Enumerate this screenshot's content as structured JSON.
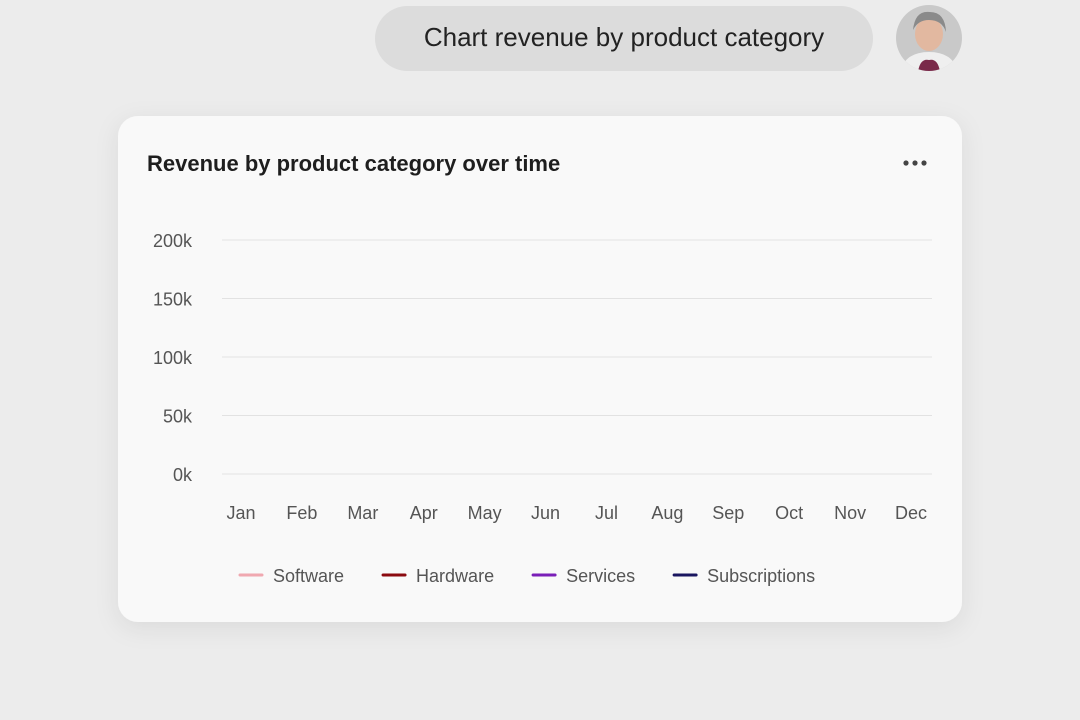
{
  "message": "Chart revenue by product category",
  "chart_data": {
    "type": "line",
    "title": "Revenue by product category over time",
    "categories": [
      "Jan",
      "Feb",
      "Mar",
      "Apr",
      "May",
      "Jun",
      "Jul",
      "Aug",
      "Sep",
      "Oct",
      "Nov",
      "Dec"
    ],
    "series": [
      {
        "name": "Software",
        "color": "#f0a8b0"
      },
      {
        "name": "Hardware",
        "color": "#8b0a10"
      },
      {
        "name": "Services",
        "color": "#7a1fb8"
      },
      {
        "name": "Subscriptions",
        "color": "#1a1660"
      }
    ],
    "ylim": [
      0,
      200000
    ],
    "yticks": [
      {
        "value": 0,
        "label": "0k"
      },
      {
        "value": 50000,
        "label": "50k"
      },
      {
        "value": 100000,
        "label": "100k"
      },
      {
        "value": 150000,
        "label": "150k"
      },
      {
        "value": 200000,
        "label": "200k"
      }
    ],
    "grid": true,
    "legend": "bottom"
  }
}
